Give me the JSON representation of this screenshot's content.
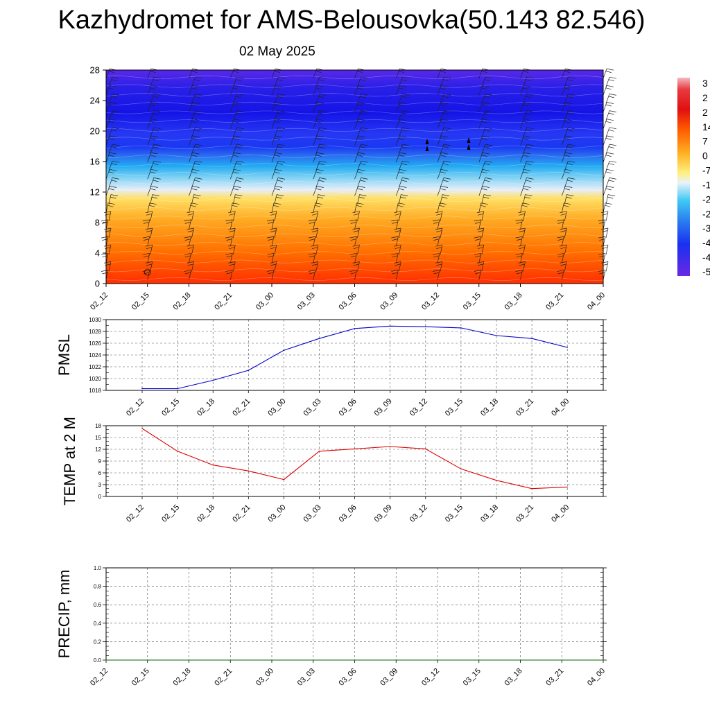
{
  "header": {
    "title": "Kazhydromet for AMS-Belousovka(50.143 82.546)",
    "date": "02 May 2025"
  },
  "colors": {
    "pmsl_line": "#0000cc",
    "temp_line": "#dd0000",
    "precip_line": "#006600",
    "grid": "#555555"
  },
  "chart_data": [
    {
      "type": "heatmap",
      "title": "",
      "x_ticks": [
        "02_12",
        "02_15",
        "02_18",
        "02_21",
        "03_00",
        "03_03",
        "03_06",
        "03_09",
        "03_12",
        "03_15",
        "03_18",
        "03_21",
        "04_00"
      ],
      "y_ticks": [
        0,
        4,
        8,
        12,
        16,
        20,
        24,
        28
      ],
      "ylim": [
        0,
        28
      ],
      "colorbar_labels": [
        "3",
        "2",
        "2",
        "14",
        "7",
        "0",
        "-7",
        "-1",
        "-2",
        "-2",
        "-3",
        "-4",
        "-4",
        "-5"
      ],
      "bands": [
        {
          "from": 0,
          "to": 11.5,
          "range": "warm",
          "colors": [
            "#ff3300",
            "#ff7a00",
            "#ffbb33",
            "#ffe66a"
          ]
        },
        {
          "from": 11.5,
          "to": 17.5,
          "range": "cool",
          "colors": [
            "#dde8f8",
            "#88d4f4",
            "#22b8f4",
            "#2b70f0",
            "#1a40f0"
          ]
        },
        {
          "from": 17.5,
          "to": 28,
          "range": "cold",
          "colors": [
            "#1010f0",
            "#2a34f4",
            "#2020e8",
            "#5a24e8"
          ]
        }
      ],
      "barbs": "wind barbs plotted at every time step and level",
      "grid": false
    },
    {
      "type": "line",
      "ylabel": "PMSL",
      "x": [
        "02_12",
        "02_15",
        "02_18",
        "02_21",
        "03_00",
        "03_03",
        "03_06",
        "03_09",
        "03_12",
        "03_15",
        "03_18",
        "03_21",
        "04_00"
      ],
      "series": [
        {
          "values": [
            1018.3,
            1018.3,
            1019.7,
            1021.4,
            1024.8,
            1026.8,
            1028.5,
            1028.9,
            1028.8,
            1028.6,
            1027.3,
            1026.8,
            1025.3
          ]
        }
      ],
      "ylim": [
        1018,
        1030
      ],
      "y_ticks": [
        1018,
        1020,
        1022,
        1024,
        1026,
        1028,
        1030
      ],
      "grid": true
    },
    {
      "type": "line",
      "ylabel": "TEMP at 2 M",
      "x": [
        "02_12",
        "02_15",
        "02_18",
        "02_21",
        "03_00",
        "03_03",
        "03_06",
        "03_09",
        "03_12",
        "03_15",
        "03_18",
        "03_21",
        "04_00"
      ],
      "series": [
        {
          "values": [
            17.3,
            11.5,
            8.0,
            6.5,
            4.3,
            11.5,
            12.1,
            12.7,
            12.1,
            7.0,
            4.1,
            2.0,
            2.4
          ]
        }
      ],
      "ylim": [
        0,
        18
      ],
      "y_ticks": [
        0,
        3,
        6,
        9,
        12,
        15,
        18
      ],
      "grid": true
    },
    {
      "type": "line",
      "ylabel": "PRECIP, mm",
      "x": [
        "02_12",
        "02_15",
        "02_18",
        "02_21",
        "03_00",
        "03_03",
        "03_06",
        "03_09",
        "03_12",
        "03_15",
        "03_18",
        "03_21",
        "04_00"
      ],
      "series": [
        {
          "values": [
            0,
            0,
            0,
            0,
            0,
            0,
            0,
            0,
            0,
            0,
            0,
            0,
            0
          ]
        }
      ],
      "ylim": [
        0,
        1.0
      ],
      "y_ticks": [
        "0.0",
        "0.2",
        "0.4",
        "0.6",
        "0.8",
        "1.0"
      ],
      "grid": true
    }
  ]
}
